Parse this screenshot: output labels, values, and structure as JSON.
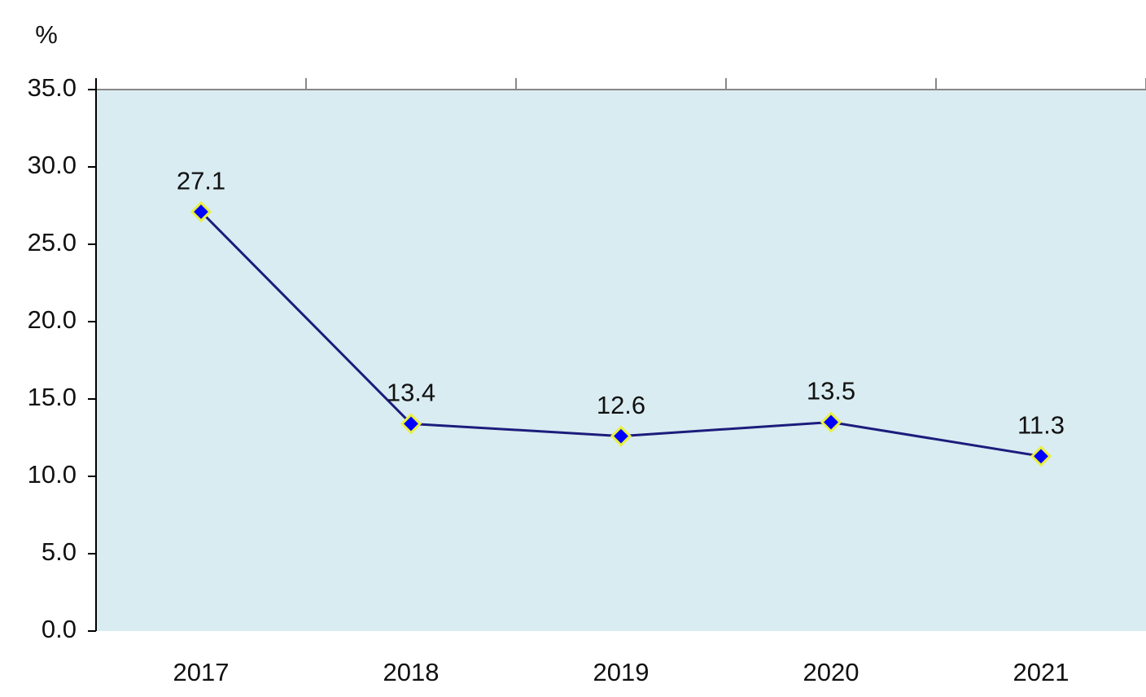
{
  "chart_data": {
    "type": "line",
    "y_label": "%",
    "categories": [
      "2017",
      "2018",
      "2019",
      "2020",
      "2021"
    ],
    "series": [
      {
        "values": [
          27.1,
          13.4,
          12.6,
          13.5,
          11.3
        ],
        "color": "#1c1c7c",
        "marker_color": "#0000ff",
        "marker_edge_color": "#e8f040"
      }
    ],
    "ylim": [
      0,
      35
    ],
    "yticks": [
      {
        "value": 0,
        "label": "0.0"
      },
      {
        "value": 5,
        "label": "5.0"
      },
      {
        "value": 10,
        "label": "10.0"
      },
      {
        "value": 15,
        "label": "15.0"
      },
      {
        "value": 20,
        "label": "20.0"
      },
      {
        "value": 25,
        "label": "25.0"
      },
      {
        "value": 30,
        "label": "30.0"
      },
      {
        "value": 35,
        "label": "35.0"
      }
    ],
    "plot_background": "#d9ecf2",
    "data_labels": true
  }
}
